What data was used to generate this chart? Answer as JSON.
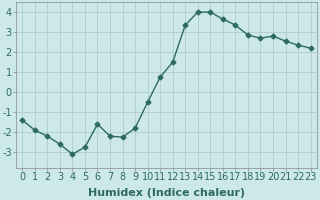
{
  "x": [
    0,
    1,
    2,
    3,
    4,
    5,
    6,
    7,
    8,
    9,
    10,
    11,
    12,
    13,
    14,
    15,
    16,
    17,
    18,
    19,
    20,
    21,
    22,
    23
  ],
  "y": [
    -1.4,
    -1.9,
    -2.2,
    -2.6,
    -3.1,
    -2.75,
    -1.6,
    -2.2,
    -2.25,
    -1.8,
    -0.5,
    0.75,
    1.5,
    3.35,
    4.0,
    4.0,
    3.65,
    3.35,
    2.85,
    2.7,
    2.8,
    2.55,
    2.35,
    2.2
  ],
  "line_color": "#2e6b5e",
  "marker": "D",
  "marker_size": 2.5,
  "bg_color": "#cce8e8",
  "grid_color": "#b0cccc",
  "xlabel": "Humidex (Indice chaleur)",
  "ylim": [
    -3.8,
    4.5
  ],
  "xlim": [
    -0.5,
    23.5
  ],
  "yticks": [
    -3,
    -2,
    -1,
    0,
    1,
    2,
    3,
    4
  ],
  "xticks": [
    0,
    1,
    2,
    3,
    4,
    5,
    6,
    7,
    8,
    9,
    10,
    11,
    12,
    13,
    14,
    15,
    16,
    17,
    18,
    19,
    20,
    21,
    22,
    23
  ],
  "xlabel_fontsize": 8,
  "tick_fontsize": 7,
  "line_width": 1.0
}
